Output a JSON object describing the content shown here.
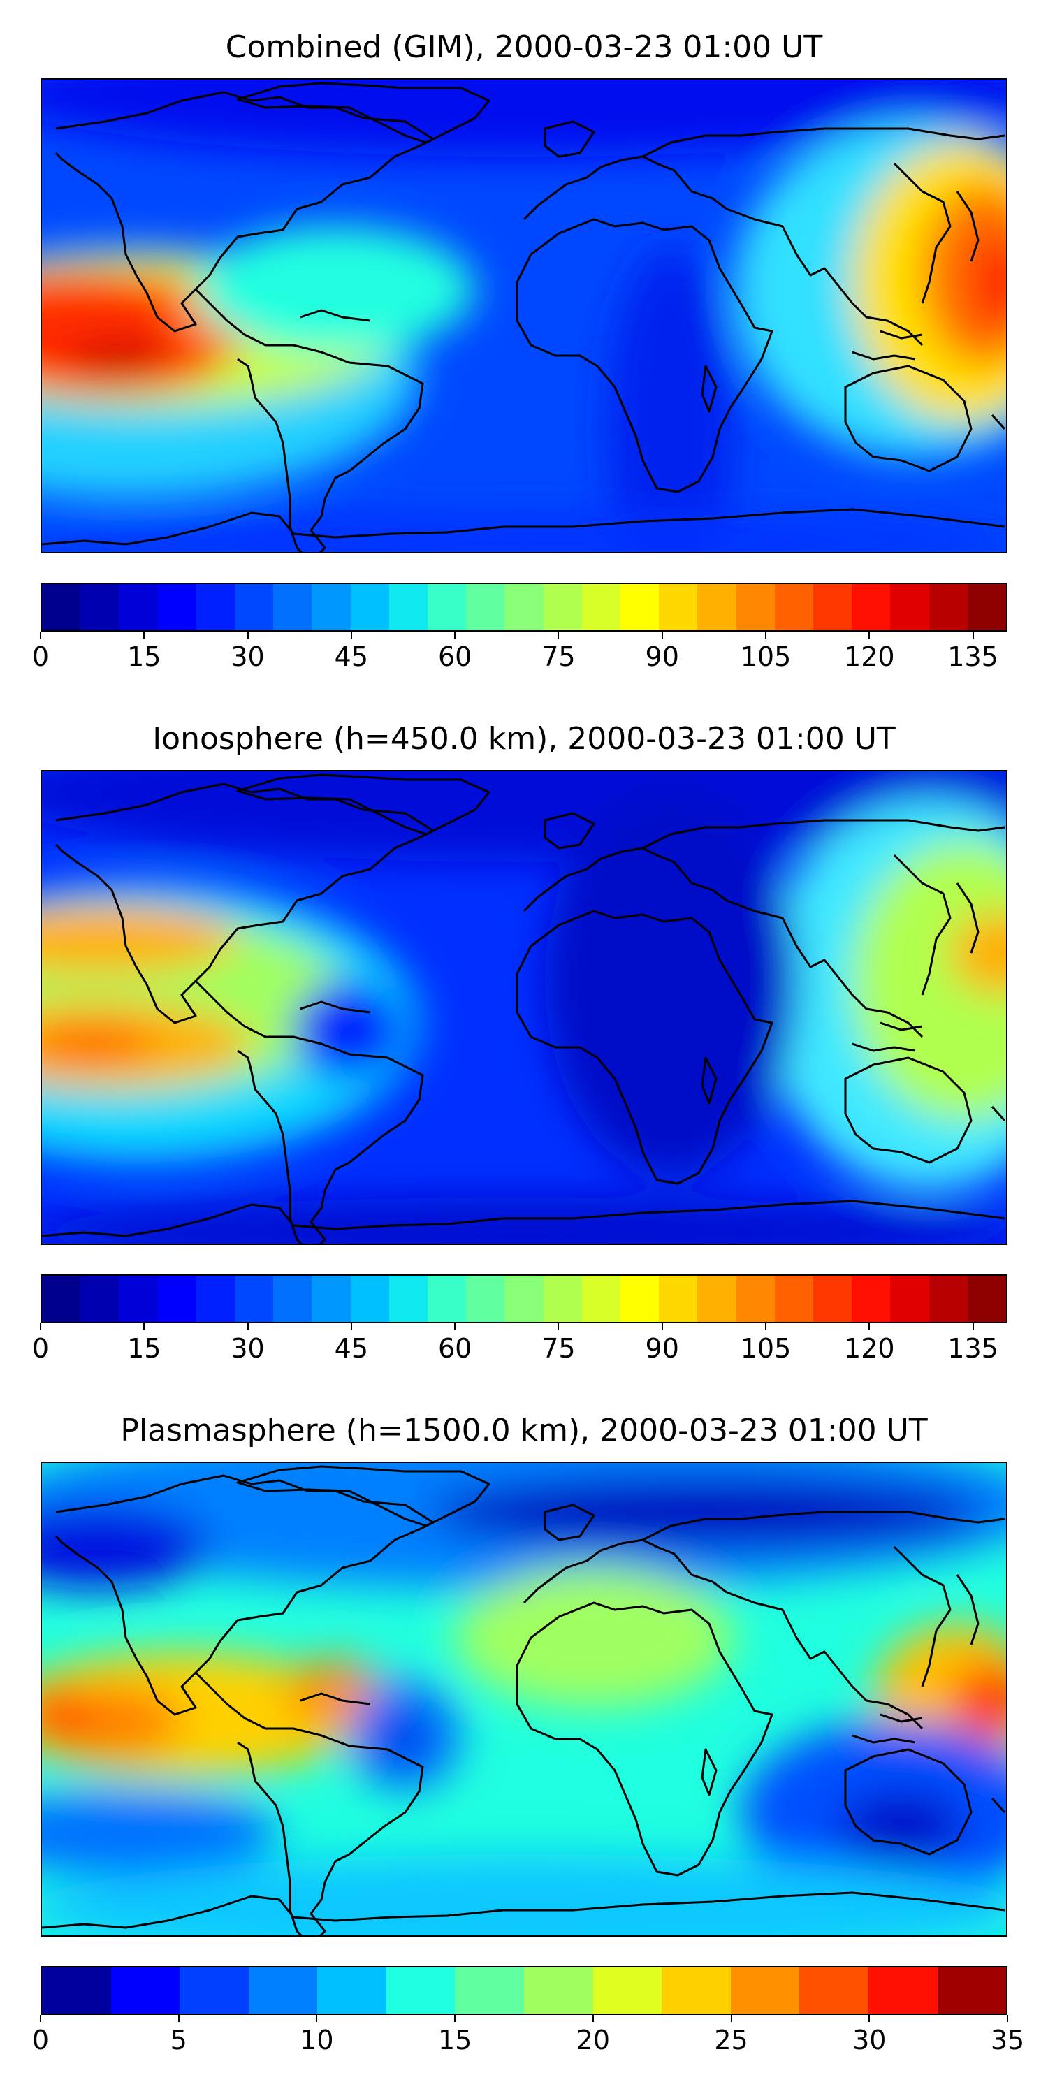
{
  "panels": [
    {
      "title": "Combined (GIM), 2000-03-23 01:00 UT",
      "colorbar": {
        "min": 0,
        "max": 140,
        "ticks": [
          "0",
          "15",
          "30",
          "45",
          "60",
          "75",
          "90",
          "105",
          "120",
          "135"
        ],
        "tick_values": [
          0,
          15,
          30,
          45,
          60,
          75,
          90,
          105,
          120,
          135
        ],
        "colors": [
          "#00008f",
          "#0000b0",
          "#0000d8",
          "#0000ff",
          "#0020ff",
          "#0048ff",
          "#0070ff",
          "#0098ff",
          "#00c0ff",
          "#10e8ef",
          "#38ffc7",
          "#60ff9f",
          "#88ff77",
          "#b0ff4f",
          "#d8ff27",
          "#ffff00",
          "#ffd800",
          "#ffb000",
          "#ff8800",
          "#ff6000",
          "#ff3800",
          "#ff1000",
          "#e00000",
          "#b80000",
          "#8f0000"
        ]
      }
    },
    {
      "title": "Ionosphere  (h=450.0 km), 2000-03-23 01:00 UT",
      "colorbar": {
        "min": 0,
        "max": 140,
        "ticks": [
          "0",
          "15",
          "30",
          "45",
          "60",
          "75",
          "90",
          "105",
          "120",
          "135"
        ],
        "tick_values": [
          0,
          15,
          30,
          45,
          60,
          75,
          90,
          105,
          120,
          135
        ],
        "colors": [
          "#00008f",
          "#0000b0",
          "#0000d8",
          "#0000ff",
          "#0020ff",
          "#0048ff",
          "#0070ff",
          "#0098ff",
          "#00c0ff",
          "#10e8ef",
          "#38ffc7",
          "#60ff9f",
          "#88ff77",
          "#b0ff4f",
          "#d8ff27",
          "#ffff00",
          "#ffd800",
          "#ffb000",
          "#ff8800",
          "#ff6000",
          "#ff3800",
          "#ff1000",
          "#e00000",
          "#b80000",
          "#8f0000"
        ]
      }
    },
    {
      "title": "Plasmasphere (h=1500.0 km), 2000-03-23 01:00 UT",
      "colorbar": {
        "min": 0,
        "max": 35,
        "ticks": [
          "0",
          "5",
          "10",
          "15",
          "20",
          "25",
          "30",
          "35"
        ],
        "tick_values": [
          0,
          5,
          10,
          15,
          20,
          25,
          30,
          35
        ],
        "colors": [
          "#00009f",
          "#0000ff",
          "#0040ff",
          "#0080ff",
          "#00c0ff",
          "#20ffdf",
          "#60ff9f",
          "#a0ff5f",
          "#dfff20",
          "#ffd000",
          "#ff9000",
          "#ff5000",
          "#ff1000",
          "#a00000"
        ]
      }
    }
  ]
}
